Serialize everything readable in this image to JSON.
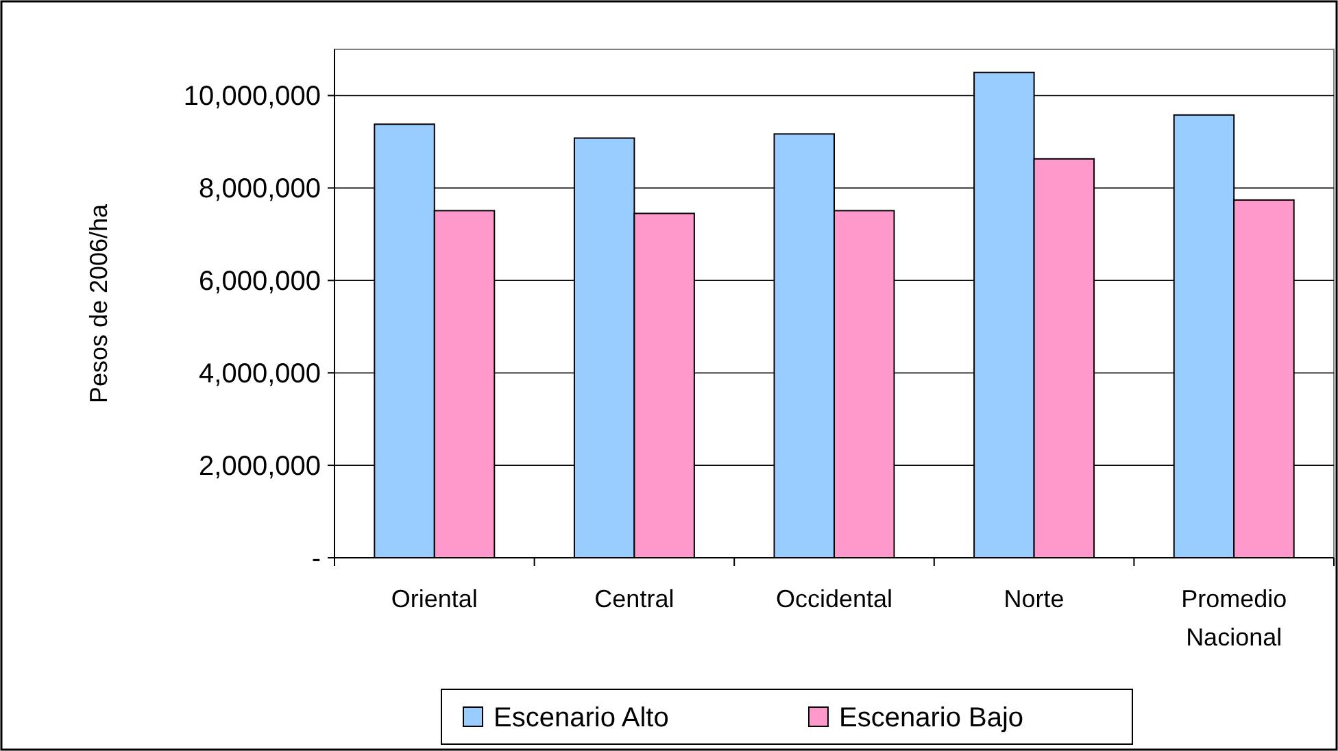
{
  "chart_data": {
    "type": "bar",
    "ylabel": "Pesos de 2006/ha",
    "categories": [
      "Oriental",
      "Central",
      "Occidental",
      "Norte",
      "Promedio Nacional"
    ],
    "series": [
      {
        "name": "Escenario Alto",
        "color": "#99ccff",
        "values": [
          9380000,
          9080000,
          9170000,
          10500000,
          9580000
        ]
      },
      {
        "name": "Escenario Bajo",
        "color": "#ff99cc",
        "values": [
          7510000,
          7450000,
          7510000,
          8630000,
          7740000
        ]
      }
    ],
    "ylim": [
      0,
      11000000
    ],
    "yticks": [
      {
        "value": 0,
        "label": "-"
      },
      {
        "value": 2000000,
        "label": "2,000,000"
      },
      {
        "value": 4000000,
        "label": "4,000,000"
      },
      {
        "value": 6000000,
        "label": "6,000,000"
      },
      {
        "value": 8000000,
        "label": "8,000,000"
      },
      {
        "value": 10000000,
        "label": "10,000,000"
      }
    ],
    "grid": "y",
    "legend": "bottom"
  }
}
